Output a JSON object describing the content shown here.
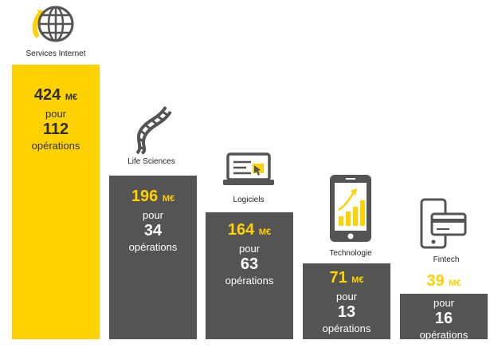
{
  "colors": {
    "accent": "#ffd200",
    "bar_dark": "#545454",
    "dark_text": "#2e2e2e",
    "white": "#ffffff"
  },
  "chart_data": {
    "type": "bar",
    "categories": [
      "Services Internet",
      "Life Sciences",
      "Logiciels",
      "Technologie",
      "Fintech"
    ],
    "series": [
      {
        "values": [
          424,
          196,
          164,
          71,
          39
        ]
      }
    ],
    "unit": "M€",
    "connector": "pour",
    "operation_counts": [
      112,
      34,
      63,
      13,
      16
    ],
    "operations_label": "opérations",
    "icons": [
      "globe-icon",
      "dna-icon",
      "laptop-icon",
      "smartphone-chart-icon",
      "phone-card-icon"
    ]
  },
  "sectors": [
    {
      "label": "Services Internet",
      "amount": "424",
      "unit": "M€",
      "pour": "pour",
      "count": "112",
      "ops": "opérations"
    },
    {
      "label": "Life Sciences",
      "amount": "196",
      "unit": "M€",
      "pour": "pour",
      "count": "34",
      "ops": "opérations"
    },
    {
      "label": "Logiciels",
      "amount": "164",
      "unit": "M€",
      "pour": "pour",
      "count": "63",
      "ops": "opérations"
    },
    {
      "label": "Technologie",
      "amount": "71",
      "unit": "M€",
      "pour": "pour",
      "count": "13",
      "ops": "opérations"
    },
    {
      "label": "Fintech",
      "amount": "39",
      "unit": "M€",
      "pour": "pour",
      "count": "16",
      "ops": "opérations"
    }
  ]
}
